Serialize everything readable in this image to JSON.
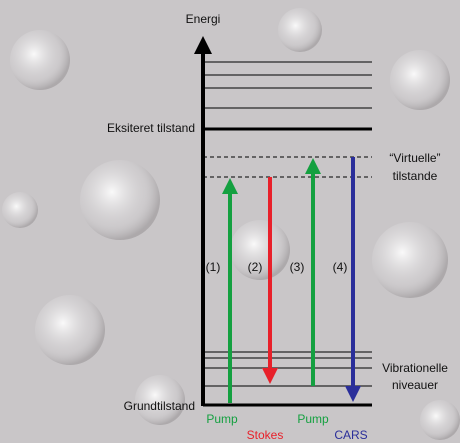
{
  "axis_label": "Energi",
  "levels": {
    "excited": "Eksiteret tilstand",
    "ground": "Grundtilstand",
    "virtual": [
      "“Virtuelle”",
      "tilstande"
    ],
    "vibrational": [
      "Vibrationelle",
      "niveauer"
    ]
  },
  "transitions": [
    {
      "number": "(1)",
      "label": "Pump"
    },
    {
      "number": "(2)",
      "label": "Stokes"
    },
    {
      "number": "(3)",
      "label": "Pump"
    },
    {
      "number": "(4)",
      "label": "CARS"
    }
  ]
}
